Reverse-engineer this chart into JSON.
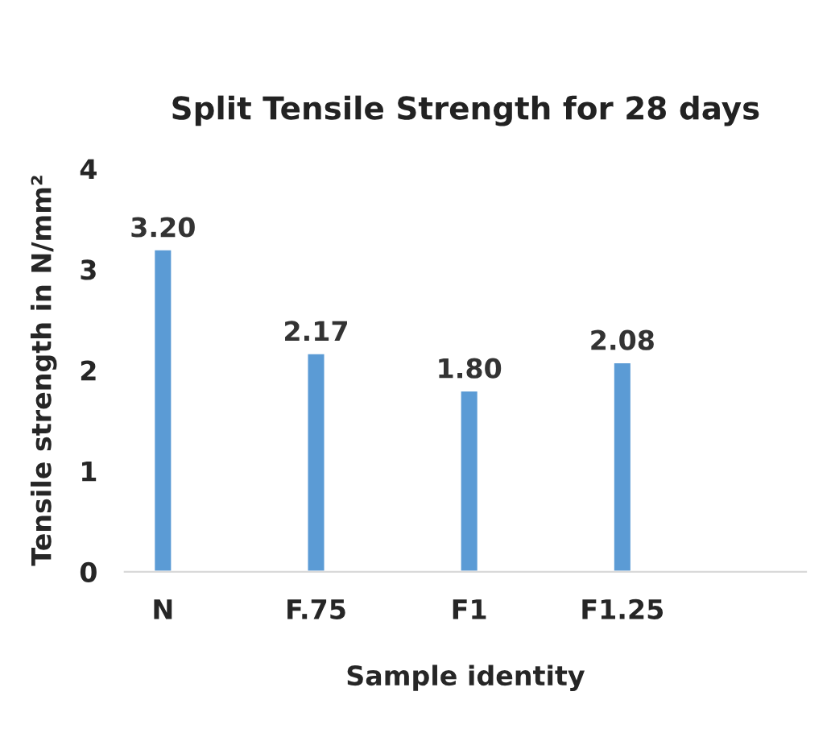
{
  "chart_data": {
    "type": "bar",
    "title": "Split Tensile Strength for 28 days",
    "xlabel": "Sample identity",
    "ylabel": "Tensile strength in N/mm²",
    "categories": [
      "N",
      "F.75",
      "F1",
      "F1.25"
    ],
    "values": [
      3.2,
      2.17,
      1.8,
      2.08
    ],
    "color": "#5b9bd5",
    "value_labels": [
      "3.20",
      "2.17",
      "1.80",
      "2.08"
    ],
    "ylim": [
      0,
      4
    ],
    "yticks": [
      0,
      1,
      2,
      3,
      4
    ],
    "grid": false
  }
}
